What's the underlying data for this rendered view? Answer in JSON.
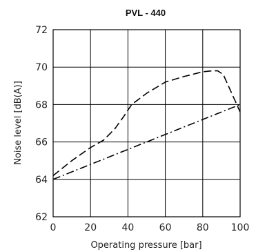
{
  "chart_data": {
    "type": "line",
    "title": "PVL - 440",
    "xlabel": "Operating pressure [bar]",
    "ylabel": "Noise level [dB(A)]",
    "xlim": [
      0,
      100
    ],
    "ylim": [
      62,
      72
    ],
    "xticks": [
      0,
      20,
      40,
      60,
      80,
      100
    ],
    "yticks": [
      62,
      64,
      66,
      68,
      70,
      72
    ],
    "xtick_labels": [
      "0",
      "20",
      "40",
      "60",
      "80",
      "100"
    ],
    "ytick_labels": [
      "62",
      "64",
      "66",
      "68",
      "70",
      "72"
    ],
    "grid": true,
    "legend": "none",
    "series": [
      {
        "style": "dashed",
        "x": [
          0,
          10,
          20,
          27,
          33,
          38,
          42,
          50,
          60,
          70,
          80,
          85,
          88,
          91,
          100
        ],
        "y": [
          64.2,
          65.0,
          65.7,
          66.1,
          66.7,
          67.4,
          68.0,
          68.6,
          69.2,
          69.5,
          69.75,
          69.8,
          69.8,
          69.6,
          67.6
        ]
      },
      {
        "style": "dashdot",
        "x": [
          0,
          100
        ],
        "y": [
          64.0,
          68.0
        ]
      }
    ]
  }
}
